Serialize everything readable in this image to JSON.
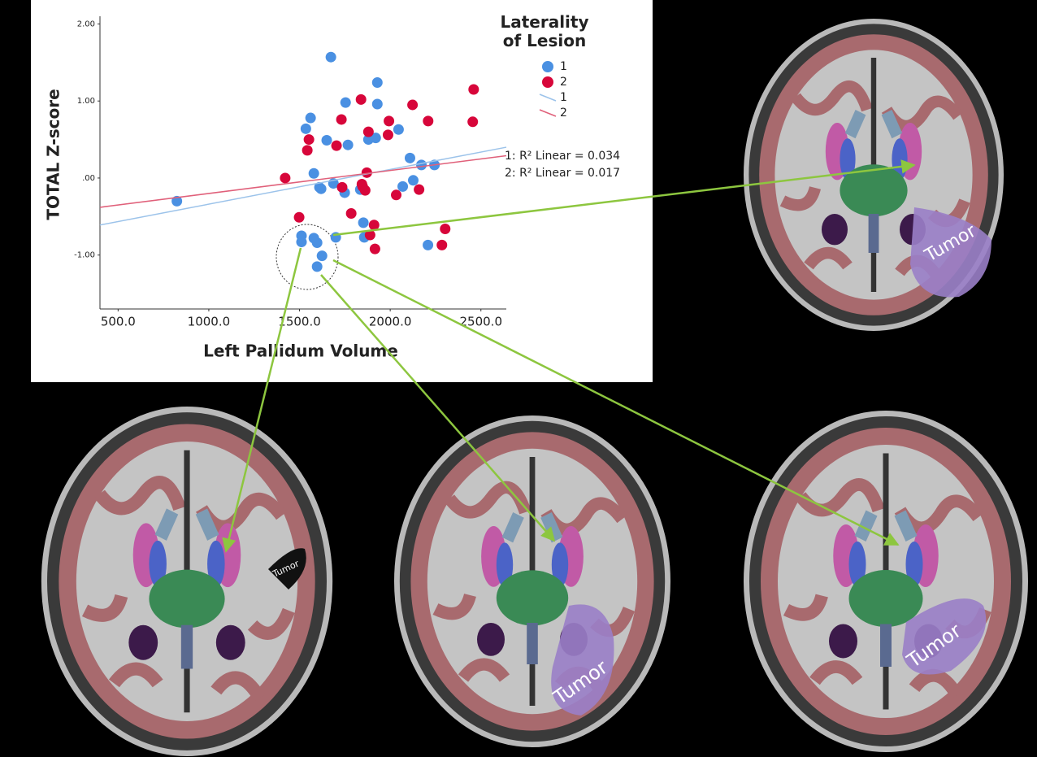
{
  "chart_data": {
    "type": "scatter",
    "x_label": "Left Pallidum Volume",
    "y_label": "TOTAL Z-score",
    "legend_title": "Laterality of Lesion",
    "xlim": [
      400,
      2640
    ],
    "ylim": [
      -1.7,
      2.1
    ],
    "xticks": [
      {
        "value": 500,
        "label": "500.0"
      },
      {
        "value": 1000,
        "label": "1000.0"
      },
      {
        "value": 1500,
        "label": "1500.0"
      },
      {
        "value": 2000,
        "label": "2000.0"
      },
      {
        "value": 2500,
        "label": "2500.0"
      }
    ],
    "yticks": [
      {
        "value": 2,
        "label": "2.00"
      },
      {
        "value": 1,
        "label": "1.00"
      },
      {
        "value": 0,
        "label": ".00"
      },
      {
        "value": -1,
        "label": "-1.00"
      }
    ],
    "series": [
      {
        "name": "1",
        "type": "scatter",
        "color": "#4a90e2",
        "x": [
          824,
          1673,
          1929,
          1561,
          1535,
          1754,
          1929,
          1650,
          1767,
          1880,
          1920,
          2046,
          2109,
          2244,
          2172,
          1579,
          1610,
          1619,
          1687,
          1749,
          1835,
          2069,
          2127,
          1852,
          1857,
          2208,
          1511,
          1511,
          1579,
          1597,
          1624,
          1597,
          1700
        ],
        "values": [
          -0.3,
          1.57,
          1.24,
          0.78,
          0.64,
          0.98,
          0.96,
          0.49,
          0.43,
          0.5,
          0.52,
          0.63,
          0.26,
          0.17,
          0.17,
          0.06,
          -0.12,
          -0.14,
          -0.07,
          -0.19,
          -0.15,
          -0.11,
          -0.03,
          -0.58,
          -0.77,
          -0.87,
          -0.75,
          -0.83,
          -0.78,
          -0.84,
          -1.01,
          -1.15,
          -0.77
        ]
      },
      {
        "name": "2",
        "type": "scatter",
        "color": "#d7063a",
        "x": [
          1421,
          1552,
          1543,
          1498,
          1704,
          1731,
          1839,
          1880,
          1993,
          1988,
          2123,
          2209,
          2460,
          2455,
          1871,
          1844,
          1848,
          1735,
          1862,
          2033,
          2159,
          1785,
          1911,
          1889,
          1916,
          2303,
          2285
        ],
        "values": [
          0,
          0.5,
          0.36,
          -0.51,
          0.42,
          0.76,
          1.02,
          0.6,
          0.74,
          0.56,
          0.95,
          0.74,
          1.15,
          0.73,
          0.07,
          -0.08,
          -0.11,
          -0.12,
          -0.16,
          -0.22,
          -0.15,
          -0.46,
          -0.61,
          -0.74,
          -0.92,
          -0.66,
          -0.87
        ]
      },
      {
        "name": "1",
        "type": "line",
        "color": "#9cc3ea",
        "x": [
          400,
          2640
        ],
        "values": [
          -0.61,
          0.4
        ]
      },
      {
        "name": "2",
        "type": "line",
        "color": "#e0607a",
        "x": [
          400,
          2640
        ],
        "values": [
          -0.38,
          0.29
        ]
      }
    ],
    "annotations": [
      "1: R² Linear = 0.034",
      "2: R² Linear = 0.017"
    ]
  },
  "images": [
    {
      "label": "Tumor"
    },
    {
      "label": "Tumor"
    },
    {
      "label": "Tumor"
    },
    {
      "label": "Tumor"
    }
  ]
}
